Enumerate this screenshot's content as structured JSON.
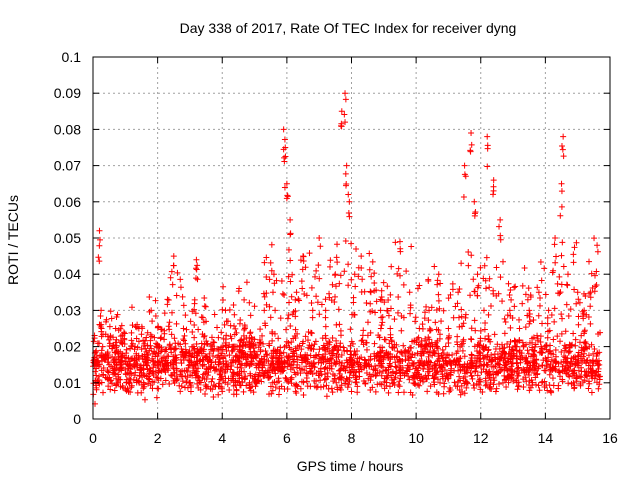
{
  "chart_data": {
    "type": "scatter",
    "title": "Day 338 of 2017, Rate Of TEC Index for receiver dyng",
    "xlabel": "GPS time / hours",
    "ylabel": "ROTI / TECUs",
    "xlim": [
      0,
      16
    ],
    "ylim": [
      0,
      0.1
    ],
    "x_ticks": [
      0,
      2,
      4,
      6,
      8,
      10,
      12,
      14,
      16
    ],
    "x_tick_labels": [
      "0",
      "2",
      "4",
      "6",
      "8",
      "10",
      "12",
      "14",
      "16"
    ],
    "y_ticks": [
      0,
      0.01,
      0.02,
      0.03,
      0.04,
      0.05,
      0.06,
      0.07,
      0.08,
      0.09,
      0.1
    ],
    "y_tick_labels": [
      "0",
      "0.01",
      "0.02",
      "0.03",
      "0.04",
      "0.05",
      "0.06",
      "0.07",
      "0.08",
      "0.09",
      "0.1"
    ],
    "grid": true,
    "marker": "+",
    "color": "#ff0000",
    "series": [
      {
        "name": "ROTI",
        "x": [
          0.1,
          0.2,
          0.25,
          0.3,
          0.5,
          0.7,
          0.9,
          1.1,
          1.3,
          1.6,
          1.8,
          2.0,
          2.2,
          2.5,
          2.8,
          3.1,
          3.2,
          3.4,
          3.6,
          3.9,
          4.1,
          4.4,
          4.7,
          5.0,
          5.3,
          5.6,
          5.9,
          5.95,
          6.0,
          6.1,
          6.3,
          6.5,
          6.8,
          7.0,
          7.2,
          7.5,
          7.7,
          7.8,
          7.85,
          7.9,
          8.1,
          8.3,
          8.6,
          8.9,
          9.2,
          9.5,
          9.8,
          10.1,
          10.4,
          10.7,
          11.0,
          11.3,
          11.5,
          11.7,
          11.8,
          11.9,
          12.1,
          12.2,
          12.4,
          12.6,
          12.9,
          13.2,
          13.5,
          13.8,
          14.1,
          14.3,
          14.5,
          14.55,
          14.7,
          15.0,
          15.2,
          15.4,
          15.6
        ],
        "y": [
          0.012,
          0.052,
          0.03,
          0.02,
          0.015,
          0.025,
          0.018,
          0.014,
          0.02,
          0.012,
          0.03,
          0.015,
          0.022,
          0.045,
          0.025,
          0.02,
          0.044,
          0.028,
          0.018,
          0.015,
          0.03,
          0.02,
          0.025,
          0.022,
          0.03,
          0.04,
          0.08,
          0.075,
          0.065,
          0.055,
          0.035,
          0.045,
          0.03,
          0.05,
          0.03,
          0.04,
          0.085,
          0.09,
          0.07,
          0.062,
          0.04,
          0.045,
          0.035,
          0.03,
          0.025,
          0.049,
          0.035,
          0.025,
          0.03,
          0.04,
          0.025,
          0.035,
          0.07,
          0.079,
          0.06,
          0.04,
          0.03,
          0.078,
          0.066,
          0.055,
          0.03,
          0.025,
          0.03,
          0.035,
          0.03,
          0.05,
          0.065,
          0.078,
          0.04,
          0.035,
          0.03,
          0.035,
          0.048
        ]
      }
    ]
  }
}
